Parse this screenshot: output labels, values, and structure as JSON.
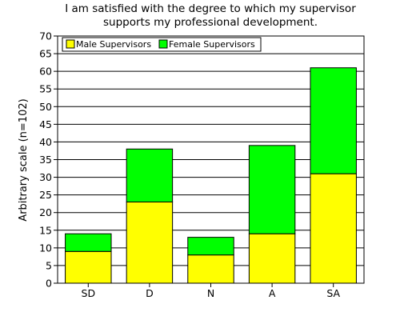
{
  "chart_data": {
    "type": "bar",
    "stacked": true,
    "title": [
      "I am satisfied with the degree to which my supervisor",
      "supports my professional development."
    ],
    "ylabel": "Arbitrary scale (n=102)",
    "xlabel": "",
    "categories": [
      "SD",
      "D",
      "N",
      "A",
      "SA"
    ],
    "ylim": [
      0,
      70
    ],
    "yticks": [
      0,
      5,
      10,
      15,
      20,
      25,
      30,
      35,
      40,
      45,
      50,
      55,
      60,
      65,
      70
    ],
    "grid": "horizontal",
    "legend": "top-left",
    "series": [
      {
        "name": "Male Supervisors",
        "color": "#ffff00",
        "values": [
          9,
          23,
          8,
          14,
          31
        ]
      },
      {
        "name": "Female Supervisors",
        "color": "#00ff00",
        "values": [
          5,
          15,
          5,
          25,
          30
        ]
      }
    ]
  }
}
